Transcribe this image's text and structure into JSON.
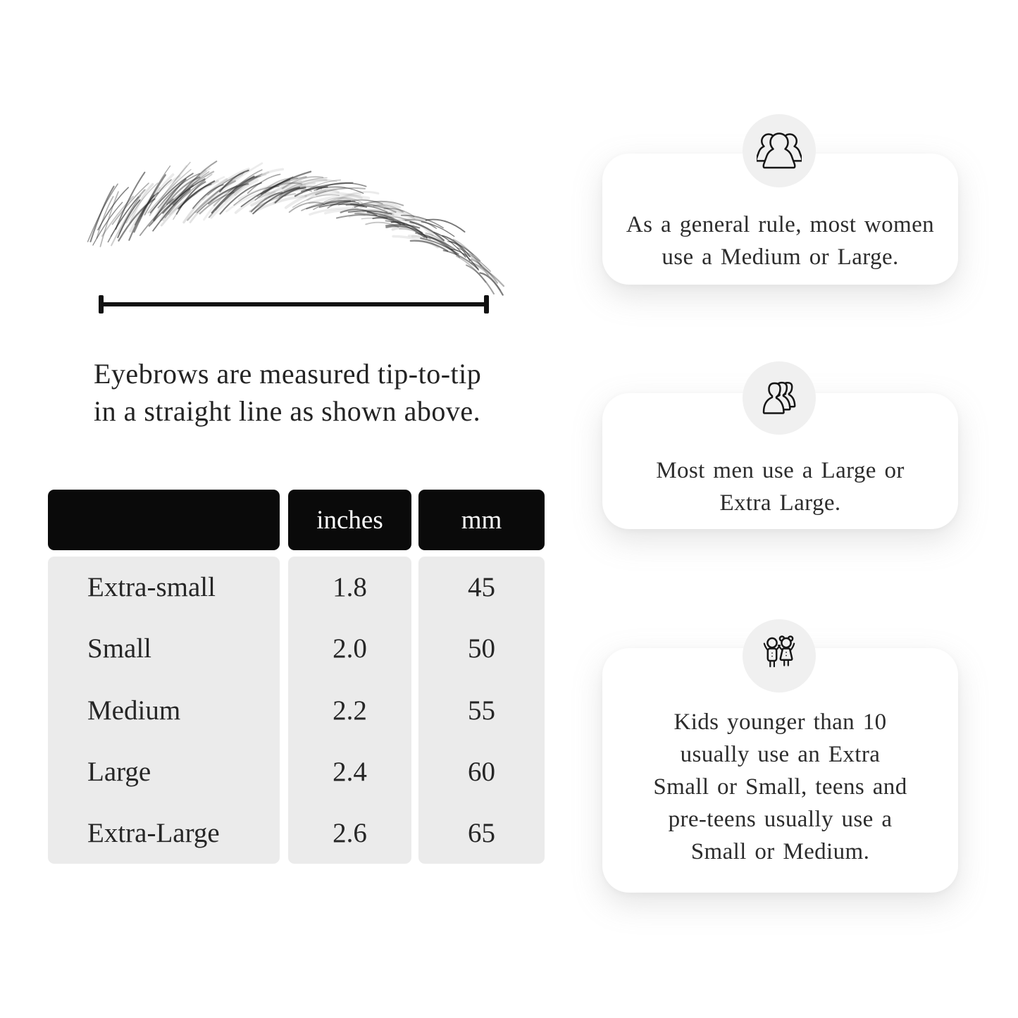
{
  "diagram": {
    "caption_lines": [
      "Eyebrows are measured tip-to-tip",
      "in a straight line as shown above."
    ]
  },
  "table": {
    "headers": {
      "size": "",
      "inches": "inches",
      "mm": "mm"
    },
    "rows": [
      {
        "label": "Extra-small",
        "inches": "1.8",
        "mm": "45"
      },
      {
        "label": "Small",
        "inches": "2.0",
        "mm": "50"
      },
      {
        "label": "Medium",
        "inches": "2.2",
        "mm": "55"
      },
      {
        "label": "Large",
        "inches": "2.4",
        "mm": "60"
      },
      {
        "label": "Extra-Large",
        "inches": "2.6",
        "mm": "65"
      }
    ]
  },
  "cards": [
    {
      "icon": "women-group-icon",
      "lines": [
        "As a general rule, most women",
        "use a Medium or Large."
      ]
    },
    {
      "icon": "men-group-icon",
      "lines": [
        "Most men use a Large or",
        "Extra Large."
      ]
    },
    {
      "icon": "kids-icon",
      "lines": [
        "Kids younger than 10",
        "usually use an Extra",
        "Small or Small, teens and",
        "pre-teens usually use a",
        "Small or Medium."
      ]
    }
  ],
  "colors": {
    "page_bg": "#ffffff",
    "card_bg": "#ffffff",
    "badge_bg": "#f0f0f0",
    "table_header_bg": "#0a0a0a",
    "table_header_text": "#ffffff",
    "table_body_bg": "#ebebeb",
    "text": "#2b2b2b",
    "line": "#111111"
  }
}
